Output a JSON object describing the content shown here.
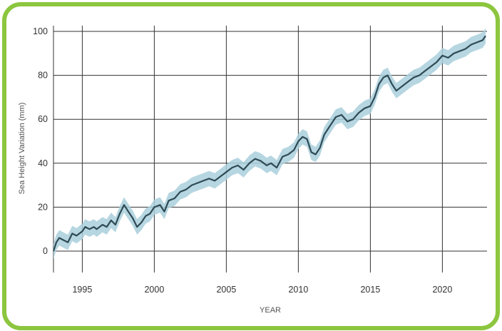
{
  "colors": {
    "frame": "#8cc63f",
    "line": "#2e4a55",
    "band": "#a9cfdc",
    "grid": "#333333"
  },
  "chart_data": {
    "type": "line",
    "title": "",
    "xlabel": "YEAR",
    "ylabel": "Sea Height Variation (mm)",
    "xlim": [
      1993.0,
      2023.1
    ],
    "ylim": [
      0,
      100
    ],
    "x_ticks": [
      1995,
      2000,
      2005,
      2010,
      2015,
      2020
    ],
    "y_ticks": [
      0,
      20,
      40,
      60,
      80,
      100
    ],
    "grid": true,
    "legend": "none",
    "uncertainty_band_mm": 3.5,
    "series": [
      {
        "x": [
          1993.0,
          1993.2,
          1993.4,
          1993.7,
          1994.0,
          1994.3,
          1994.6,
          1995.0,
          1995.2,
          1995.5,
          1995.8,
          1996.0,
          1996.4,
          1996.7,
          1997.0,
          1997.3,
          1997.6,
          1997.9,
          1998.2,
          1998.5,
          1998.8,
          1999.1,
          1999.4,
          1999.7,
          2000.0,
          2000.4,
          2000.7,
          2001.0,
          2001.4,
          2001.8,
          2002.2,
          2002.6,
          2003.0,
          2003.4,
          2003.8,
          2004.2,
          2004.6,
          2005.0,
          2005.4,
          2005.8,
          2006.2,
          2006.6,
          2007.0,
          2007.4,
          2007.8,
          2008.1,
          2008.5,
          2008.9,
          2009.3,
          2009.7,
          2010.0,
          2010.3,
          2010.6,
          2010.9,
          2011.2,
          2011.5,
          2011.8,
          2012.2,
          2012.6,
          2013.0,
          2013.4,
          2013.8,
          2014.2,
          2014.6,
          2015.0,
          2015.3,
          2015.6,
          2015.9,
          2016.2,
          2016.5,
          2016.8,
          2017.2,
          2017.6,
          2018.0,
          2018.4,
          2018.8,
          2019.2,
          2019.6,
          2020.0,
          2020.4,
          2020.8,
          2021.2,
          2021.6,
          2022.0,
          2022.4,
          2022.8,
          2023.0
        ],
        "values": [
          0,
          4,
          6,
          5,
          4,
          8,
          7,
          9,
          11,
          10,
          11,
          10,
          12,
          11,
          14,
          12,
          17,
          21,
          18,
          15,
          11,
          13,
          16,
          17,
          20,
          21,
          18,
          23,
          24,
          27,
          28,
          30,
          31,
          32,
          33,
          32,
          34,
          36,
          38,
          39,
          37,
          40,
          42,
          41,
          39,
          40,
          38,
          43,
          44,
          46,
          50,
          52,
          51,
          45,
          44,
          47,
          53,
          57,
          61,
          62,
          59,
          60,
          63,
          65,
          66,
          70,
          76,
          79,
          80,
          76,
          73,
          75,
          77,
          79,
          80,
          82,
          84,
          86,
          89,
          88,
          90,
          91,
          92,
          94,
          95,
          96,
          98
        ]
      }
    ]
  }
}
